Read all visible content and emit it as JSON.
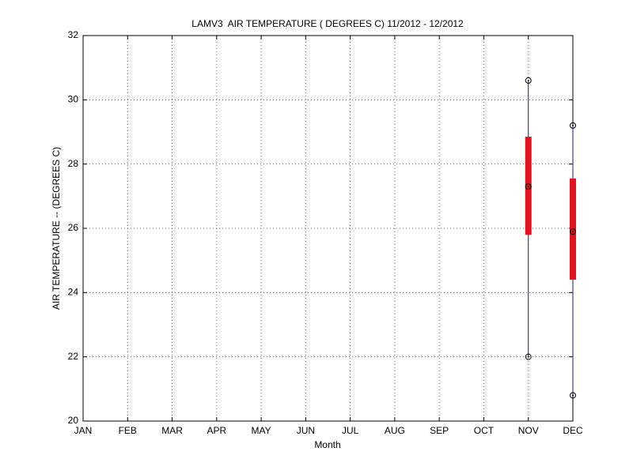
{
  "chart_data": {
    "type": "box",
    "title": "LAMV3  AIR TEMPERATURE ( DEGREES C) 11/2012 - 12/2012",
    "x_label": "Month",
    "y_label": "AIR TEMPERATURE -- (DEGREES C)",
    "categories": [
      "JAN",
      "FEB",
      "MAR",
      "APR",
      "MAY",
      "JUN",
      "JUL",
      "AUG",
      "SEP",
      "OCT",
      "NOV",
      "DEC"
    ],
    "min": [
      null,
      null,
      null,
      null,
      null,
      null,
      null,
      null,
      null,
      null,
      22.0,
      20.8
    ],
    "q1": [
      null,
      null,
      null,
      null,
      null,
      null,
      null,
      null,
      null,
      null,
      25.8,
      24.4
    ],
    "median": [
      null,
      null,
      null,
      null,
      null,
      null,
      null,
      null,
      null,
      null,
      27.3,
      25.9
    ],
    "q3": [
      null,
      null,
      null,
      null,
      null,
      null,
      null,
      null,
      null,
      null,
      28.85,
      27.55
    ],
    "max": [
      null,
      null,
      null,
      null,
      null,
      null,
      null,
      null,
      null,
      null,
      30.6,
      29.2
    ],
    "whisker_color": "#1a1a8c",
    "box_color": "#e3101f",
    "ylim": [
      20,
      32
    ],
    "yticks": [
      20,
      22,
      24,
      26,
      28,
      30,
      32
    ],
    "grid": true
  }
}
